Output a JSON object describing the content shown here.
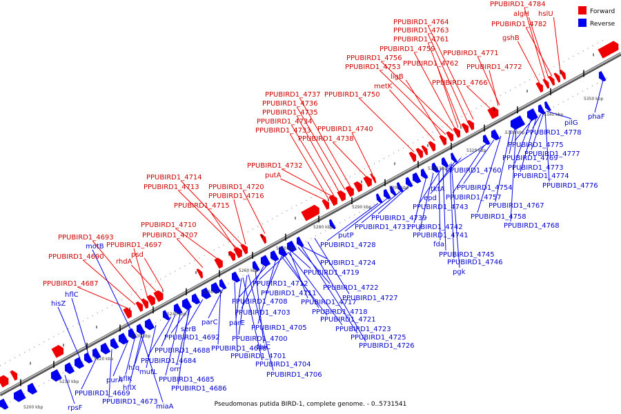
{
  "caption": "Pseudomonas putida BIRD-1, complete genome. - 0..5731541",
  "legend": [
    {
      "label": "Forward",
      "color": "#ee0000"
    },
    {
      "label": "Reverse",
      "color": "#0000ee"
    }
  ],
  "colors": {
    "forward": "#ee0000",
    "reverse": "#0000ee",
    "backbone": "#888888"
  },
  "scale_labels": [
    "5200 kbp",
    "5210 kbp",
    "5220 kbp",
    "5230 kbp",
    "5240 kbp",
    "5250 kbp",
    "5260 kbp",
    "5270 kbp",
    "5280 kbp",
    "5290 kbp",
    "5300 kbp",
    "5310 kbp",
    "5320 kbp",
    "5330 kbp",
    "5340 kbp",
    "5350 kbp"
  ],
  "forward_labels": [
    "PPUBIRD1_4784",
    "algH",
    "hslU",
    "PPUBIRD1_4782",
    "gshB",
    "PPUBIRD1_4764",
    "PPUBIRD1_4763",
    "PPUBIRD1_4761",
    "PPUBIRD1_4759",
    "PPUBIRD1_4771",
    "PPUBIRD1_4756",
    "PPUBIRD1_4762",
    "PPUBIRD1_4753",
    "PPUBIRD1_4772",
    "ligB",
    "PPUBIRD1_4766",
    "metK",
    "PPUBIRD1_4737",
    "PPUBIRD1_4750",
    "PPUBIRD1_4736",
    "PPUBIRD1_4735",
    "PPUBIRD1_4734",
    "PPUBIRD1_4733",
    "PPUBIRD1_4740",
    "PPUBIRD1_4738",
    "PPUBIRD1_4732",
    "putA",
    "PPUBIRD1_4714",
    "PPUBIRD1_4713",
    "PPUBIRD1_4720",
    "PPUBIRD1_4716",
    "PPUBIRD1_4715",
    "PPUBIRD1_4710",
    "PPUBIRD1_4707",
    "PPUBIRD1_4693",
    "PPUBIRD1_4697",
    "PPUBIRD1_4690",
    "rhdA",
    "psd",
    "PPUBIRD1_4687"
  ],
  "reverse_labels": [
    "phaF",
    "pilG",
    "PPUBIRD1_4778",
    "PPUBIRD1_4775",
    "PPUBIRD1_4777",
    "PPUBIRD1_4769",
    "PPUBIRD1_4773",
    "PPUBIRD1_4774",
    "PPUBIRD1_4776",
    "PPUBIRD1_4760",
    "tktA",
    "PPUBIRD1_4754",
    "epd",
    "PPUBIRD1_4757",
    "PPUBIRD1_4743",
    "PPUBIRD1_4767",
    "PPUBIRD1_4758",
    "PPUBIRD1_4768",
    "PPUBIRD1_4739",
    "PPUBIRD1_4731",
    "PPUBIRD1_4742",
    "PPUBIRD1_4741",
    "fda",
    "putP",
    "PPUBIRD1_4728",
    "PPUBIRD1_4745",
    "PPUBIRD1_4746",
    "pgk",
    "PPUBIRD1_4724",
    "PPUBIRD1_4719",
    "PPUBIRD1_4712",
    "PPUBIRD1_4722",
    "PPUBIRD1_4711",
    "PPUBIRD1_4727",
    "PPUBIRD1_4708",
    "PPUBIRD1_4717",
    "PPUBIRD1_4718",
    "PPUBIRD1_4703",
    "parC",
    "PPUBIRD1_4721",
    "parE",
    "PPUBIRD1_4705",
    "PPUBIRD1_4723",
    "serB",
    "PPUBIRD1_4692",
    "PPUBIRD1_4700",
    "thiC",
    "PPUBIRD1_4725",
    "PPUBIRD1_4726",
    "PPUBIRD1_4688",
    "PPUBIRD1_4698",
    "PPUBIRD1_4701",
    "PPUBIRD1_4684",
    "PPUBIRD1_4704",
    "orn",
    "PPUBIRD1_4706",
    "PPUBIRD1_4685",
    "PPUBIRD1_4686",
    "hfq",
    "mutL",
    "purA",
    "hflK",
    "hflX",
    "PPUBIRD1_4669",
    "PPUBIRD1_4673",
    "miaA",
    "rpsF",
    "motB",
    "hflC",
    "hisZ"
  ]
}
